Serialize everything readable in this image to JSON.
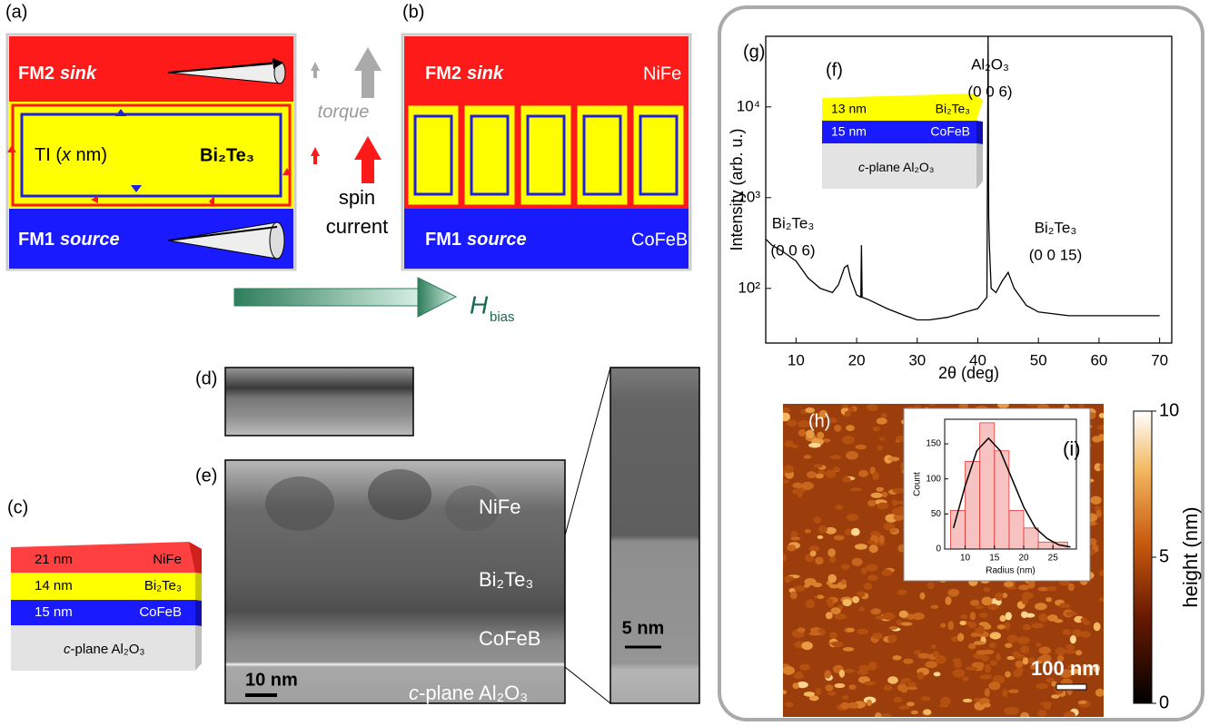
{
  "panel_labels": {
    "a": "(a)",
    "b": "(b)",
    "c": "(c)",
    "d": "(d)",
    "e": "(e)",
    "f": "(f)",
    "g": "(g)",
    "h": "(h)",
    "i": "(i)"
  },
  "panel_a": {
    "top_layer": [
      "FM2",
      "sink"
    ],
    "ti_label": [
      "TI (",
      "x",
      " nm)"
    ],
    "ti_material": "Bi₂Te₃",
    "bottom_layer": [
      "FM1",
      "source"
    ]
  },
  "panel_b": {
    "top_layer": [
      "FM2",
      "sink"
    ],
    "top_material": "NiFe",
    "bottom_layer": [
      "FM1",
      "source"
    ],
    "bottom_material": "CoFeB"
  },
  "arrows": {
    "torque": "torque",
    "spin_current": [
      "spin",
      "current"
    ],
    "field": [
      "H",
      "bias"
    ]
  },
  "panel_c": {
    "layers": [
      {
        "thickness": "21 nm",
        "material": "NiFe"
      },
      {
        "thickness": "14 nm",
        "material": "Bi₂Te₃"
      },
      {
        "thickness": "15 nm",
        "material": "CoFeB"
      }
    ],
    "substrate": [
      "c",
      "-plane Al₂O₃"
    ]
  },
  "panel_e": {
    "layers": [
      "NiFe",
      "Bi₂Te₃",
      "CoFeB"
    ],
    "substrate": [
      "c",
      "-plane Al₂O₃"
    ],
    "scale_bar": "10 nm",
    "zoom_scale_bar": "5 nm"
  },
  "panel_f": {
    "layers": [
      {
        "thickness": "13 nm",
        "material": "Bi₂Te₃"
      },
      {
        "thickness": "15 nm",
        "material": "CoFeB"
      }
    ],
    "substrate": [
      "c",
      "-plane Al₂O₃"
    ]
  },
  "panel_h": {
    "scale_bar": "100 nm"
  },
  "chart_data": [
    {
      "type": "line",
      "x_label": "2θ (deg)",
      "y_label": "Intensity (arb. u.)",
      "log_y": true,
      "xlim": [
        5,
        72
      ],
      "ylim": [
        25,
        60000
      ],
      "xticks": [
        10,
        20,
        30,
        40,
        50,
        60,
        70
      ],
      "yticks": [
        {
          "value": 100,
          "label": "10²"
        },
        {
          "value": 1000,
          "label": "10³"
        },
        {
          "value": 10000,
          "label": "10⁴"
        }
      ],
      "x": [
        5,
        6,
        8,
        10,
        12,
        14,
        16,
        17,
        18,
        18.5,
        19,
        20,
        20.7,
        20.8,
        20.9,
        22,
        25,
        28,
        30,
        32,
        35,
        38,
        40,
        41.5,
        41.7,
        41.8,
        41.9,
        42.2,
        43,
        44,
        45,
        46,
        48,
        50,
        55,
        60,
        65,
        70
      ],
      "series": [
        {
          "color": "#000000",
          "values": [
            350,
            300,
            250,
            200,
            130,
            100,
            90,
            110,
            170,
            180,
            130,
            85,
            80,
            300,
            80,
            75,
            60,
            50,
            45,
            45,
            48,
            55,
            60,
            80,
            60000,
            600,
            300,
            100,
            90,
            120,
            150,
            100,
            65,
            55,
            50,
            50,
            50,
            50
          ]
        }
      ],
      "annotations": [
        [
          "Al₂O₃",
          "(0 0 6)"
        ],
        [
          "Bi₂Te₃",
          "(0 0 6)"
        ],
        [
          "Bi₂Te₃",
          "(0 0 15)"
        ]
      ]
    },
    {
      "type": "histogram",
      "x_label": "Radius (nm)",
      "y_label": "Count",
      "xlim": [
        6.5,
        29
      ],
      "ylim": [
        0,
        185
      ],
      "xticks": [
        10,
        15,
        20,
        25
      ],
      "yticks": [
        0,
        50,
        100,
        150
      ],
      "bins": [
        7.5,
        10,
        12.5,
        15,
        17.5,
        20,
        22.5,
        25,
        27.5
      ],
      "values": [
        55,
        125,
        180,
        140,
        55,
        30,
        10,
        10
      ],
      "color": "#e53935",
      "fit_x": [
        8,
        10,
        12,
        14,
        16,
        18,
        20,
        22,
        24,
        26,
        28
      ],
      "fit_values": [
        30,
        90,
        140,
        158,
        140,
        100,
        60,
        30,
        15,
        6,
        3
      ]
    },
    {
      "type": "colorbar",
      "y_label": "height (nm)",
      "ylim": [
        0,
        10
      ],
      "yticks": [
        0,
        5,
        10
      ]
    }
  ]
}
